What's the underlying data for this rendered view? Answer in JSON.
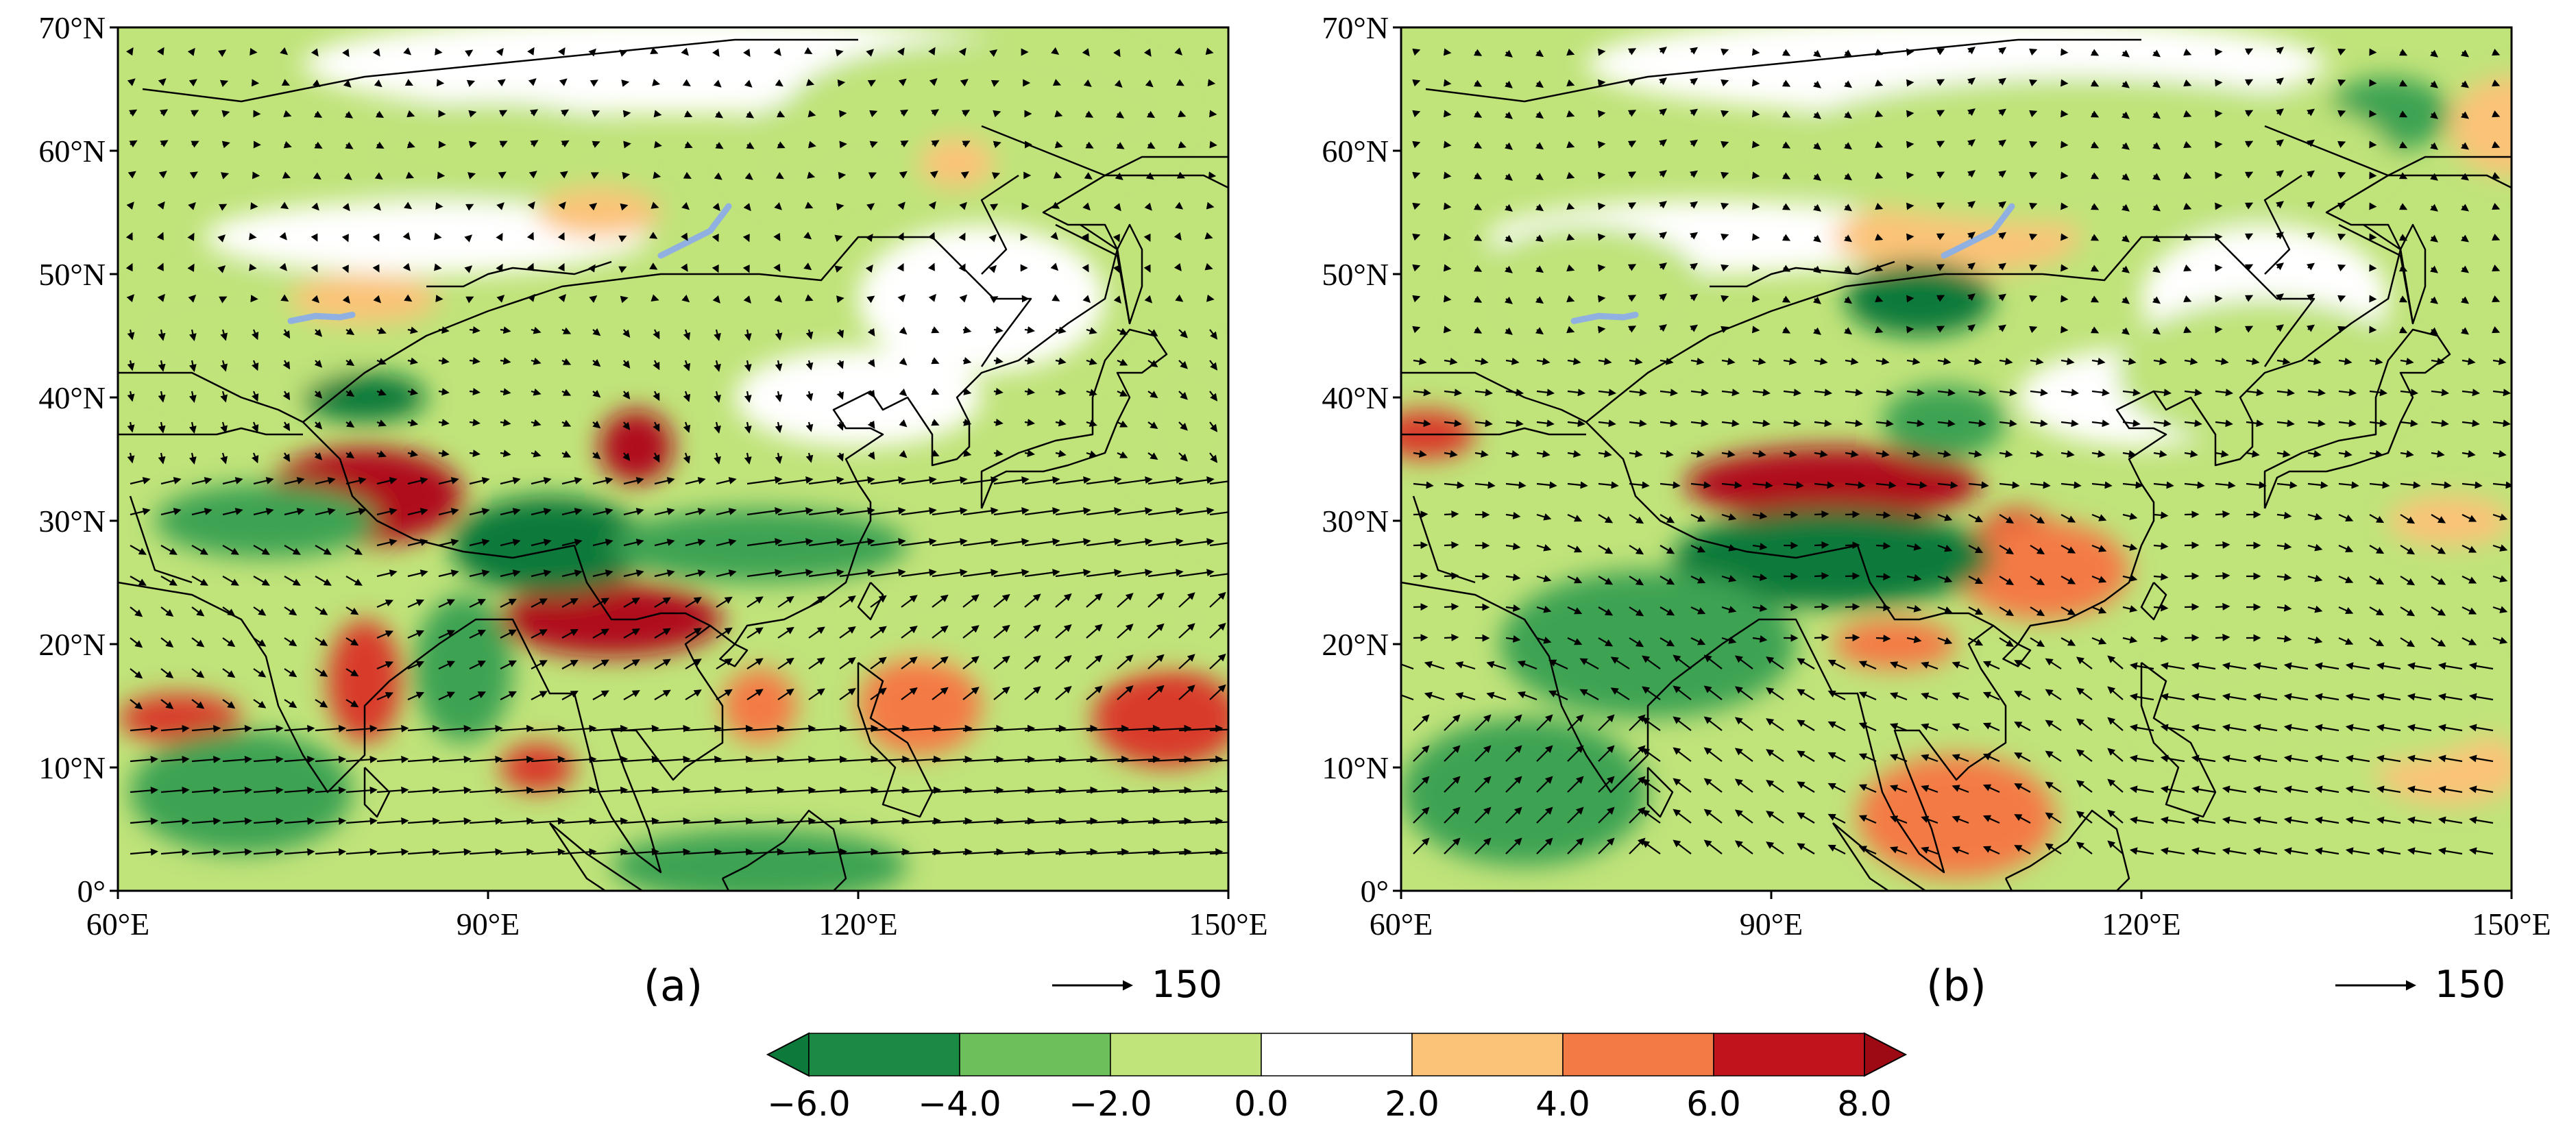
{
  "panels": [
    {
      "id": "a",
      "label": "(a)",
      "ref_vector": "150",
      "lat_ticks": [
        "70°N",
        "60°N",
        "50°N",
        "40°N",
        "30°N",
        "20°N",
        "10°N",
        "0°"
      ],
      "lon_ticks": [
        "60°E",
        "90°E",
        "120°E",
        "150°E"
      ],
      "blobs": [
        {
          "lon": 80,
          "lat": 32,
          "rx": 8,
          "ry": 4,
          "level": 8
        },
        {
          "lon": 102,
          "lat": 36,
          "rx": 3,
          "ry": 3,
          "level": 8
        },
        {
          "lon": 100,
          "lat": 22,
          "rx": 9,
          "ry": 3,
          "level": 8
        },
        {
          "lon": 80,
          "lat": 17,
          "rx": 3,
          "ry": 5,
          "level": 6
        },
        {
          "lon": 65,
          "lat": 14,
          "rx": 5,
          "ry": 2,
          "level": 6
        },
        {
          "lon": 145,
          "lat": 14,
          "rx": 6,
          "ry": 4,
          "level": 6
        },
        {
          "lon": 125,
          "lat": 15,
          "rx": 5,
          "ry": 4,
          "level": 4
        },
        {
          "lon": 94,
          "lat": 10,
          "rx": 3,
          "ry": 2,
          "level": 6
        },
        {
          "lon": 112,
          "lat": 15,
          "rx": 3,
          "ry": 3,
          "level": 4
        },
        {
          "lon": 80,
          "lat": 40,
          "rx": 5,
          "ry": 2,
          "level": -6
        },
        {
          "lon": 72,
          "lat": 30,
          "rx": 9,
          "ry": 3,
          "level": -4
        },
        {
          "lon": 95,
          "lat": 28,
          "rx": 8,
          "ry": 4,
          "level": -6
        },
        {
          "lon": 112,
          "lat": 28,
          "rx": 12,
          "ry": 3,
          "level": -4
        },
        {
          "lon": 88,
          "lat": 18,
          "rx": 4,
          "ry": 6,
          "level": -4
        },
        {
          "lon": 70,
          "lat": 8,
          "rx": 9,
          "ry": 5,
          "level": -4
        },
        {
          "lon": 112,
          "lat": 2,
          "rx": 12,
          "ry": 3,
          "level": -4
        },
        {
          "lon": 115,
          "lat": 60,
          "rx": 5,
          "ry": 4,
          "level": -2
        },
        {
          "lon": 130,
          "lat": 63,
          "rx": 16,
          "ry": 6,
          "level": -2
        },
        {
          "lon": 90,
          "lat": 60,
          "rx": 12,
          "ry": 4,
          "level": -2
        },
        {
          "lon": 70,
          "lat": 45,
          "rx": 10,
          "ry": 5,
          "level": -2
        },
        {
          "lon": 147,
          "lat": 38,
          "rx": 5,
          "ry": 6,
          "level": -2
        },
        {
          "lon": 135,
          "lat": 22,
          "rx": 15,
          "ry": 4,
          "level": -2
        },
        {
          "lon": 99,
          "lat": 55,
          "rx": 5,
          "ry": 2,
          "level": 2
        },
        {
          "lon": 128,
          "lat": 59,
          "rx": 3,
          "ry": 2,
          "level": 2
        },
        {
          "lon": 80,
          "lat": 48,
          "rx": 6,
          "ry": 2,
          "level": 2
        }
      ],
      "wind_pattern": "a"
    },
    {
      "id": "b",
      "label": "(b)",
      "ref_vector": "150",
      "lat_ticks": [
        "70°N",
        "60°N",
        "50°N",
        "40°N",
        "30°N",
        "20°N",
        "10°N",
        "0°"
      ],
      "lon_ticks": [
        "60°E",
        "90°E",
        "120°E",
        "150°E"
      ],
      "blobs": [
        {
          "lon": 95,
          "lat": 33,
          "rx": 12,
          "ry": 3,
          "level": 8
        },
        {
          "lon": 110,
          "lat": 27,
          "rx": 4,
          "ry": 4,
          "level": 6
        },
        {
          "lon": 62,
          "lat": 37,
          "rx": 4,
          "ry": 2,
          "level": 6
        },
        {
          "lon": 100,
          "lat": 20,
          "rx": 5,
          "ry": 2,
          "level": 4
        },
        {
          "lon": 112,
          "lat": 26,
          "rx": 7,
          "ry": 4,
          "level": 4
        },
        {
          "lon": 105,
          "lat": 6,
          "rx": 8,
          "ry": 5,
          "level": 4
        },
        {
          "lon": 145,
          "lat": 10,
          "rx": 6,
          "ry": 3,
          "level": 2
        },
        {
          "lon": 145,
          "lat": 30,
          "rx": 5,
          "ry": 2,
          "level": 2
        },
        {
          "lon": 105,
          "lat": 53,
          "rx": 10,
          "ry": 3,
          "level": 2
        },
        {
          "lon": 150,
          "lat": 62,
          "rx": 5,
          "ry": 4,
          "level": 2
        },
        {
          "lon": 102,
          "lat": 48,
          "rx": 6,
          "ry": 3,
          "level": -6
        },
        {
          "lon": 95,
          "lat": 27,
          "rx": 13,
          "ry": 4,
          "level": -6
        },
        {
          "lon": 80,
          "lat": 20,
          "rx": 12,
          "ry": 6,
          "level": -4
        },
        {
          "lon": 104,
          "lat": 38,
          "rx": 5,
          "ry": 3,
          "level": -4
        },
        {
          "lon": 140,
          "lat": 63,
          "rx": 5,
          "ry": 3,
          "level": -4
        },
        {
          "lon": 70,
          "lat": 8,
          "rx": 10,
          "ry": 6,
          "level": -4
        },
        {
          "lon": 115,
          "lat": 60,
          "rx": 25,
          "ry": 6,
          "level": -2
        },
        {
          "lon": 75,
          "lat": 48,
          "rx": 10,
          "ry": 6,
          "level": -2
        },
        {
          "lon": 130,
          "lat": 42,
          "rx": 12,
          "ry": 6,
          "level": -2
        },
        {
          "lon": 135,
          "lat": 15,
          "rx": 15,
          "ry": 5,
          "level": -2
        }
      ],
      "wind_pattern": "b"
    }
  ],
  "colorbar": {
    "levels": [
      "−6.0",
      "−4.0",
      "−2.0",
      "0.0",
      "2.0",
      "4.0",
      "6.0",
      "8.0"
    ],
    "colors": [
      "#0b7a3a",
      "#1a8a45",
      "#6cbf5a",
      "#c0e37a",
      "#ffffff",
      "#fbc378",
      "#f47a45",
      "#c0141c",
      "#9d0a14"
    ]
  }
}
